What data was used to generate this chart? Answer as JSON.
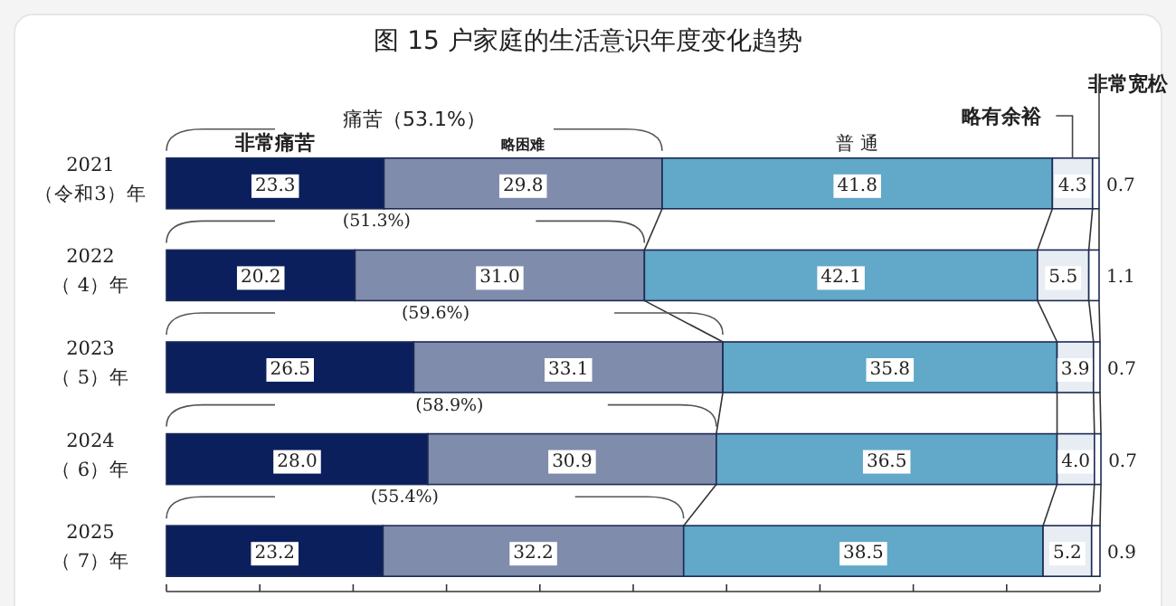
{
  "chart_data": {
    "type": "bar",
    "orientation": "horizontal",
    "stacked": true,
    "title": "图 15 户家庭的生活意识年度变化趋势",
    "categories": [
      "2021\n（令和3）年",
      "2022\n（ 4）年",
      "2023\n（ 5）年",
      "2024\n（ 6）年",
      "2025\n（ 7）年"
    ],
    "series": [
      {
        "name": "非常痛苦",
        "color": "#0b1f5c",
        "values": [
          23.3,
          20.2,
          26.5,
          28.0,
          23.2
        ],
        "value_labels": [
          "23.3",
          "20.2",
          "26.5",
          "28.0",
          "23.2"
        ]
      },
      {
        "name": "略困难",
        "color": "#7f8cab",
        "values": [
          29.8,
          31.0,
          33.1,
          30.9,
          32.2
        ],
        "value_labels": [
          "29.8",
          "31.0",
          "33.1",
          "30.9",
          "32.2"
        ]
      },
      {
        "name": "普 通",
        "color": "#62a8c8",
        "values": [
          41.8,
          42.1,
          35.8,
          36.5,
          38.5
        ],
        "value_labels": [
          "41.8",
          "42.1",
          "35.8",
          "36.5",
          "38.5"
        ]
      },
      {
        "name": "略有余裕",
        "color": "#e8edf4",
        "values": [
          4.3,
          5.5,
          3.9,
          4.0,
          5.2
        ],
        "value_labels": [
          "4.3",
          "5.5",
          "3.9",
          "4.0",
          "5.2"
        ]
      },
      {
        "name": "非常宽松",
        "color": "#ffffff",
        "values": [
          0.7,
          1.1,
          0.7,
          0.7,
          0.9
        ],
        "value_labels": [
          "0.7",
          "1.1",
          "0.7",
          "0.7",
          "0.9"
        ]
      }
    ],
    "annotations": [
      "痛苦（53.1%）",
      "(51.3%)",
      "(59.6%)",
      "(58.9%)",
      "(55.4%)"
    ],
    "xlim": [
      0,
      100
    ],
    "xticks": [
      {
        "value": 0,
        "label": null
      },
      {
        "value": 10,
        "label": null
      },
      {
        "value": 20,
        "label": null
      },
      {
        "value": 30,
        "label": null
      },
      {
        "value": 40,
        "label": null
      },
      {
        "value": 50,
        "label": null
      },
      {
        "value": 60,
        "label": null
      },
      {
        "value": 70,
        "label": null
      },
      {
        "value": 80,
        "label": null
      },
      {
        "value": 90,
        "label": null
      },
      {
        "value": 100,
        "label": null
      }
    ],
    "tick_labels": "y",
    "grid": false
  }
}
